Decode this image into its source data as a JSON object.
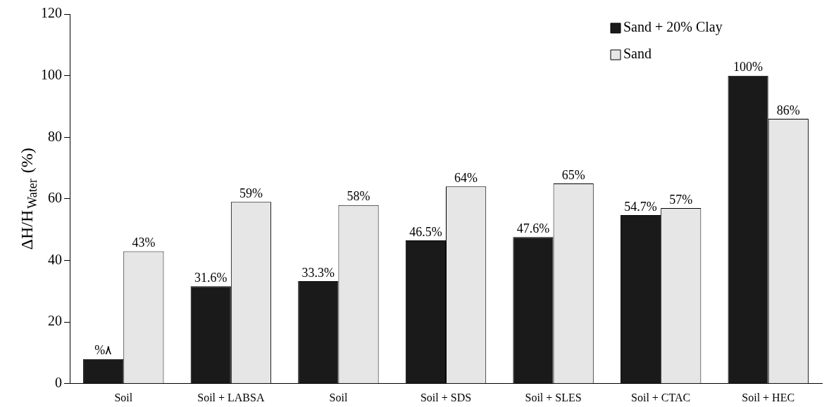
{
  "chart_data": {
    "type": "bar",
    "ylabel": "ΔH/H$_{Water}$ (%)",
    "categories": [
      "Soil",
      "Soil + LABSA",
      "Soil",
      "Soil + SDS",
      "Soil + SLES",
      "Soil + CTAC",
      "Soil + HEC"
    ],
    "series": [
      {
        "name": "Sand + 20% Clay",
        "color": "#1a1a1a",
        "values": [
          8,
          31.6,
          33.3,
          46.5,
          47.6,
          54.7,
          100
        ],
        "value_labels": [
          "%۸",
          "31.6%",
          "33.3%",
          "46.5%",
          "47.6%",
          "54.7%",
          "100%"
        ]
      },
      {
        "name": "Sand",
        "color": "#e6e6e6",
        "values": [
          43,
          59,
          58,
          64,
          65,
          57,
          86
        ],
        "value_labels": [
          "43%",
          "59%",
          "58%",
          "64%",
          "65%",
          "57%",
          "86%"
        ]
      }
    ],
    "ylim": [
      0,
      120
    ],
    "yticks": [
      0,
      20,
      40,
      60,
      80,
      100,
      120
    ],
    "grid": false,
    "legend": "top right"
  }
}
